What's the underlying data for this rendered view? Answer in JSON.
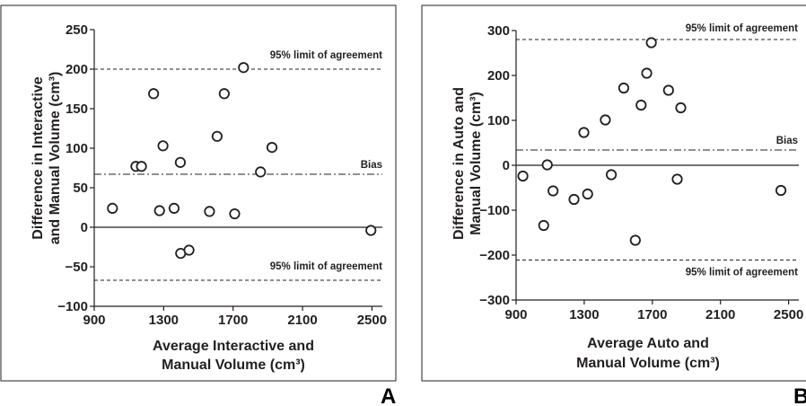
{
  "colors": {
    "ink": "#231f20",
    "background": "#ffffff"
  },
  "chart_data": [
    {
      "type": "scatter",
      "panel_label": "A",
      "xlabel": [
        "Average Interactive and",
        "Manual Volume (cm³)"
      ],
      "ylabel": [
        "Difference in Interactive",
        "and Manual Volume (cm³)"
      ],
      "xlim": [
        900,
        2560
      ],
      "ylim": [
        -100,
        250
      ],
      "xticks": [
        "900",
        "1300",
        "1700",
        "2100",
        "2500"
      ],
      "yticks": [
        "−100",
        "−50",
        "0",
        "50",
        "100",
        "150",
        "200",
        "250"
      ],
      "zero_line": 0,
      "bias": {
        "value": 67,
        "label": "Bias"
      },
      "upper_limit": {
        "value": 200,
        "label": "95% limit of agreement"
      },
      "lower_limit": {
        "value": -67,
        "label": "95% limit of agreement"
      },
      "points": [
        {
          "x": 1005,
          "y": 24
        },
        {
          "x": 1140,
          "y": 77
        },
        {
          "x": 1172,
          "y": 77
        },
        {
          "x": 1242,
          "y": 169
        },
        {
          "x": 1276,
          "y": 21
        },
        {
          "x": 1296,
          "y": 103
        },
        {
          "x": 1360,
          "y": 24
        },
        {
          "x": 1396,
          "y": 82
        },
        {
          "x": 1398,
          "y": -33
        },
        {
          "x": 1446,
          "y": -29
        },
        {
          "x": 1564,
          "y": 20
        },
        {
          "x": 1608,
          "y": 115
        },
        {
          "x": 1649,
          "y": 169
        },
        {
          "x": 1709,
          "y": 17
        },
        {
          "x": 1760,
          "y": 202
        },
        {
          "x": 1858,
          "y": 70
        },
        {
          "x": 1924,
          "y": 101
        },
        {
          "x": 2494,
          "y": -4
        }
      ]
    },
    {
      "type": "scatter",
      "panel_label": "B",
      "xlabel": [
        "Average Auto and",
        "Manual Volume (cm³)"
      ],
      "ylabel": [
        "Difference in Auto and",
        "Manual Volume (cm³)"
      ],
      "xlim": [
        900,
        2560
      ],
      "ylim": [
        -300,
        300
      ],
      "xticks": [
        "900",
        "1300",
        "1700",
        "2100",
        "2500"
      ],
      "yticks": [
        "−300",
        "−200",
        "−100",
        "0",
        "100",
        "200",
        "300"
      ],
      "zero_line": 0,
      "bias": {
        "value": 34,
        "label": "Bias"
      },
      "upper_limit": {
        "value": 280,
        "label": "95% limit of agreement"
      },
      "lower_limit": {
        "value": -211,
        "label": "95% limit of agreement"
      },
      "points": [
        {
          "x": 940,
          "y": -24
        },
        {
          "x": 1062,
          "y": -134
        },
        {
          "x": 1083,
          "y": 1
        },
        {
          "x": 1117,
          "y": -57
        },
        {
          "x": 1240,
          "y": -76
        },
        {
          "x": 1298,
          "y": 73
        },
        {
          "x": 1320,
          "y": -64
        },
        {
          "x": 1424,
          "y": 101
        },
        {
          "x": 1459,
          "y": -21
        },
        {
          "x": 1532,
          "y": 172
        },
        {
          "x": 1600,
          "y": -167
        },
        {
          "x": 1634,
          "y": 134
        },
        {
          "x": 1667,
          "y": 205
        },
        {
          "x": 1694,
          "y": 273
        },
        {
          "x": 1795,
          "y": 167
        },
        {
          "x": 1846,
          "y": -31
        },
        {
          "x": 1867,
          "y": 128
        },
        {
          "x": 2455,
          "y": -56
        }
      ]
    }
  ]
}
